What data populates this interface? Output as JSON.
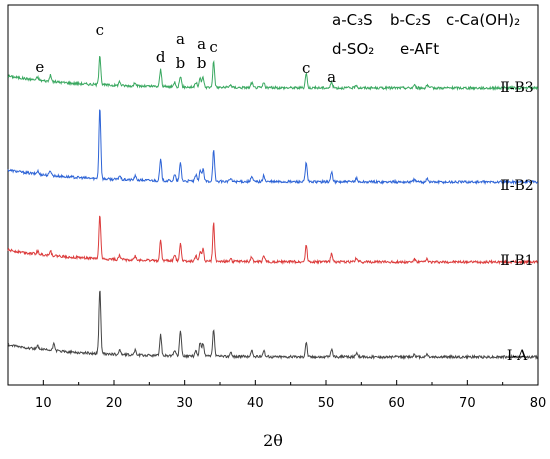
{
  "chart_data": {
    "type": "line",
    "xlabel": "2θ",
    "ylabel": "",
    "xlim": [
      5,
      80
    ],
    "x_ticks": [
      "10",
      "20",
      "30",
      "40",
      "50",
      "60",
      "70",
      "80"
    ],
    "legend": [
      {
        "key": "a",
        "phase": "C3S",
        "text": "a-C₃S"
      },
      {
        "key": "b",
        "phase": "C2S",
        "text": "b-C₂S"
      },
      {
        "key": "c",
        "phase": "Ca(OH)2",
        "text": "c-Ca(OH)₂"
      },
      {
        "key": "d",
        "phase": "SO2",
        "text": "d-SO₂"
      },
      {
        "key": "e",
        "phase": "AFt",
        "text": "e-AFt"
      }
    ],
    "series": [
      {
        "name": "Ⅱ-B3",
        "color": "#3aa860",
        "peaks": [
          [
            9.2,
            3
          ],
          [
            11,
            6
          ],
          [
            18,
            30
          ],
          [
            20.8,
            4
          ],
          [
            23,
            4
          ],
          [
            26.6,
            17
          ],
          [
            28.6,
            5
          ],
          [
            29.4,
            11
          ],
          [
            31.6,
            5
          ],
          [
            32.2,
            9
          ],
          [
            32.6,
            10
          ],
          [
            34.1,
            26
          ],
          [
            36.5,
            3
          ],
          [
            39.5,
            5
          ],
          [
            41.2,
            5
          ],
          [
            47.2,
            15
          ],
          [
            50.8,
            6
          ],
          [
            54.3,
            3
          ],
          [
            62.5,
            3
          ],
          [
            64.3,
            3
          ]
        ]
      },
      {
        "name": "Ⅱ-B2",
        "color": "#2e64d6",
        "peaks": [
          [
            9.2,
            3
          ],
          [
            11,
            5
          ],
          [
            18,
            72
          ],
          [
            20.8,
            4
          ],
          [
            23,
            4
          ],
          [
            26.6,
            21
          ],
          [
            28.6,
            6
          ],
          [
            29.4,
            18
          ],
          [
            31.6,
            6
          ],
          [
            32.2,
            11
          ],
          [
            32.6,
            12
          ],
          [
            34.1,
            31
          ],
          [
            36.5,
            3
          ],
          [
            39.5,
            5
          ],
          [
            41.2,
            6
          ],
          [
            47.2,
            19
          ],
          [
            50.8,
            10
          ],
          [
            54.3,
            4
          ],
          [
            62.5,
            3
          ],
          [
            64.3,
            4
          ]
        ]
      },
      {
        "name": "Ⅱ-B1",
        "color": "#dc3c3c",
        "peaks": [
          [
            9.2,
            3
          ],
          [
            11,
            5
          ],
          [
            18,
            44
          ],
          [
            20.8,
            4
          ],
          [
            23,
            4
          ],
          [
            26.6,
            20
          ],
          [
            28.6,
            6
          ],
          [
            29.4,
            18
          ],
          [
            31.6,
            6
          ],
          [
            32.2,
            10
          ],
          [
            32.6,
            12
          ],
          [
            34.1,
            38
          ],
          [
            36.5,
            3
          ],
          [
            39.5,
            5
          ],
          [
            41.2,
            6
          ],
          [
            47.2,
            17
          ],
          [
            50.8,
            9
          ],
          [
            54.3,
            4
          ],
          [
            62.5,
            3
          ],
          [
            64.3,
            3
          ]
        ]
      },
      {
        "name": "Ⅰ-A",
        "color": "#454545",
        "peaks": [
          [
            9.2,
            3
          ],
          [
            11.5,
            8
          ],
          [
            18,
            66
          ],
          [
            20.8,
            5
          ],
          [
            23,
            5
          ],
          [
            26.6,
            21
          ],
          [
            28.6,
            6
          ],
          [
            29.4,
            26
          ],
          [
            31.6,
            6
          ],
          [
            32.2,
            14
          ],
          [
            32.6,
            13
          ],
          [
            34.1,
            27
          ],
          [
            36.5,
            4
          ],
          [
            39.5,
            6
          ],
          [
            41.2,
            7
          ],
          [
            47.2,
            15
          ],
          [
            50.8,
            8
          ],
          [
            54.3,
            4
          ],
          [
            62.5,
            3
          ],
          [
            64.3,
            3
          ]
        ]
      }
    ],
    "annotations": [
      {
        "text": "e",
        "x": 9.5
      },
      {
        "text": "c",
        "x": 18
      },
      {
        "text": "d",
        "x": 26.6
      },
      {
        "text": "a",
        "x": 29.4
      },
      {
        "text": "b",
        "x": 29.4
      },
      {
        "text": "a",
        "x": 32.4
      },
      {
        "text": "b",
        "x": 32.4
      },
      {
        "text": "c",
        "x": 34.1
      },
      {
        "text": "c",
        "x": 47.2
      },
      {
        "text": "a",
        "x": 50.8
      }
    ]
  }
}
